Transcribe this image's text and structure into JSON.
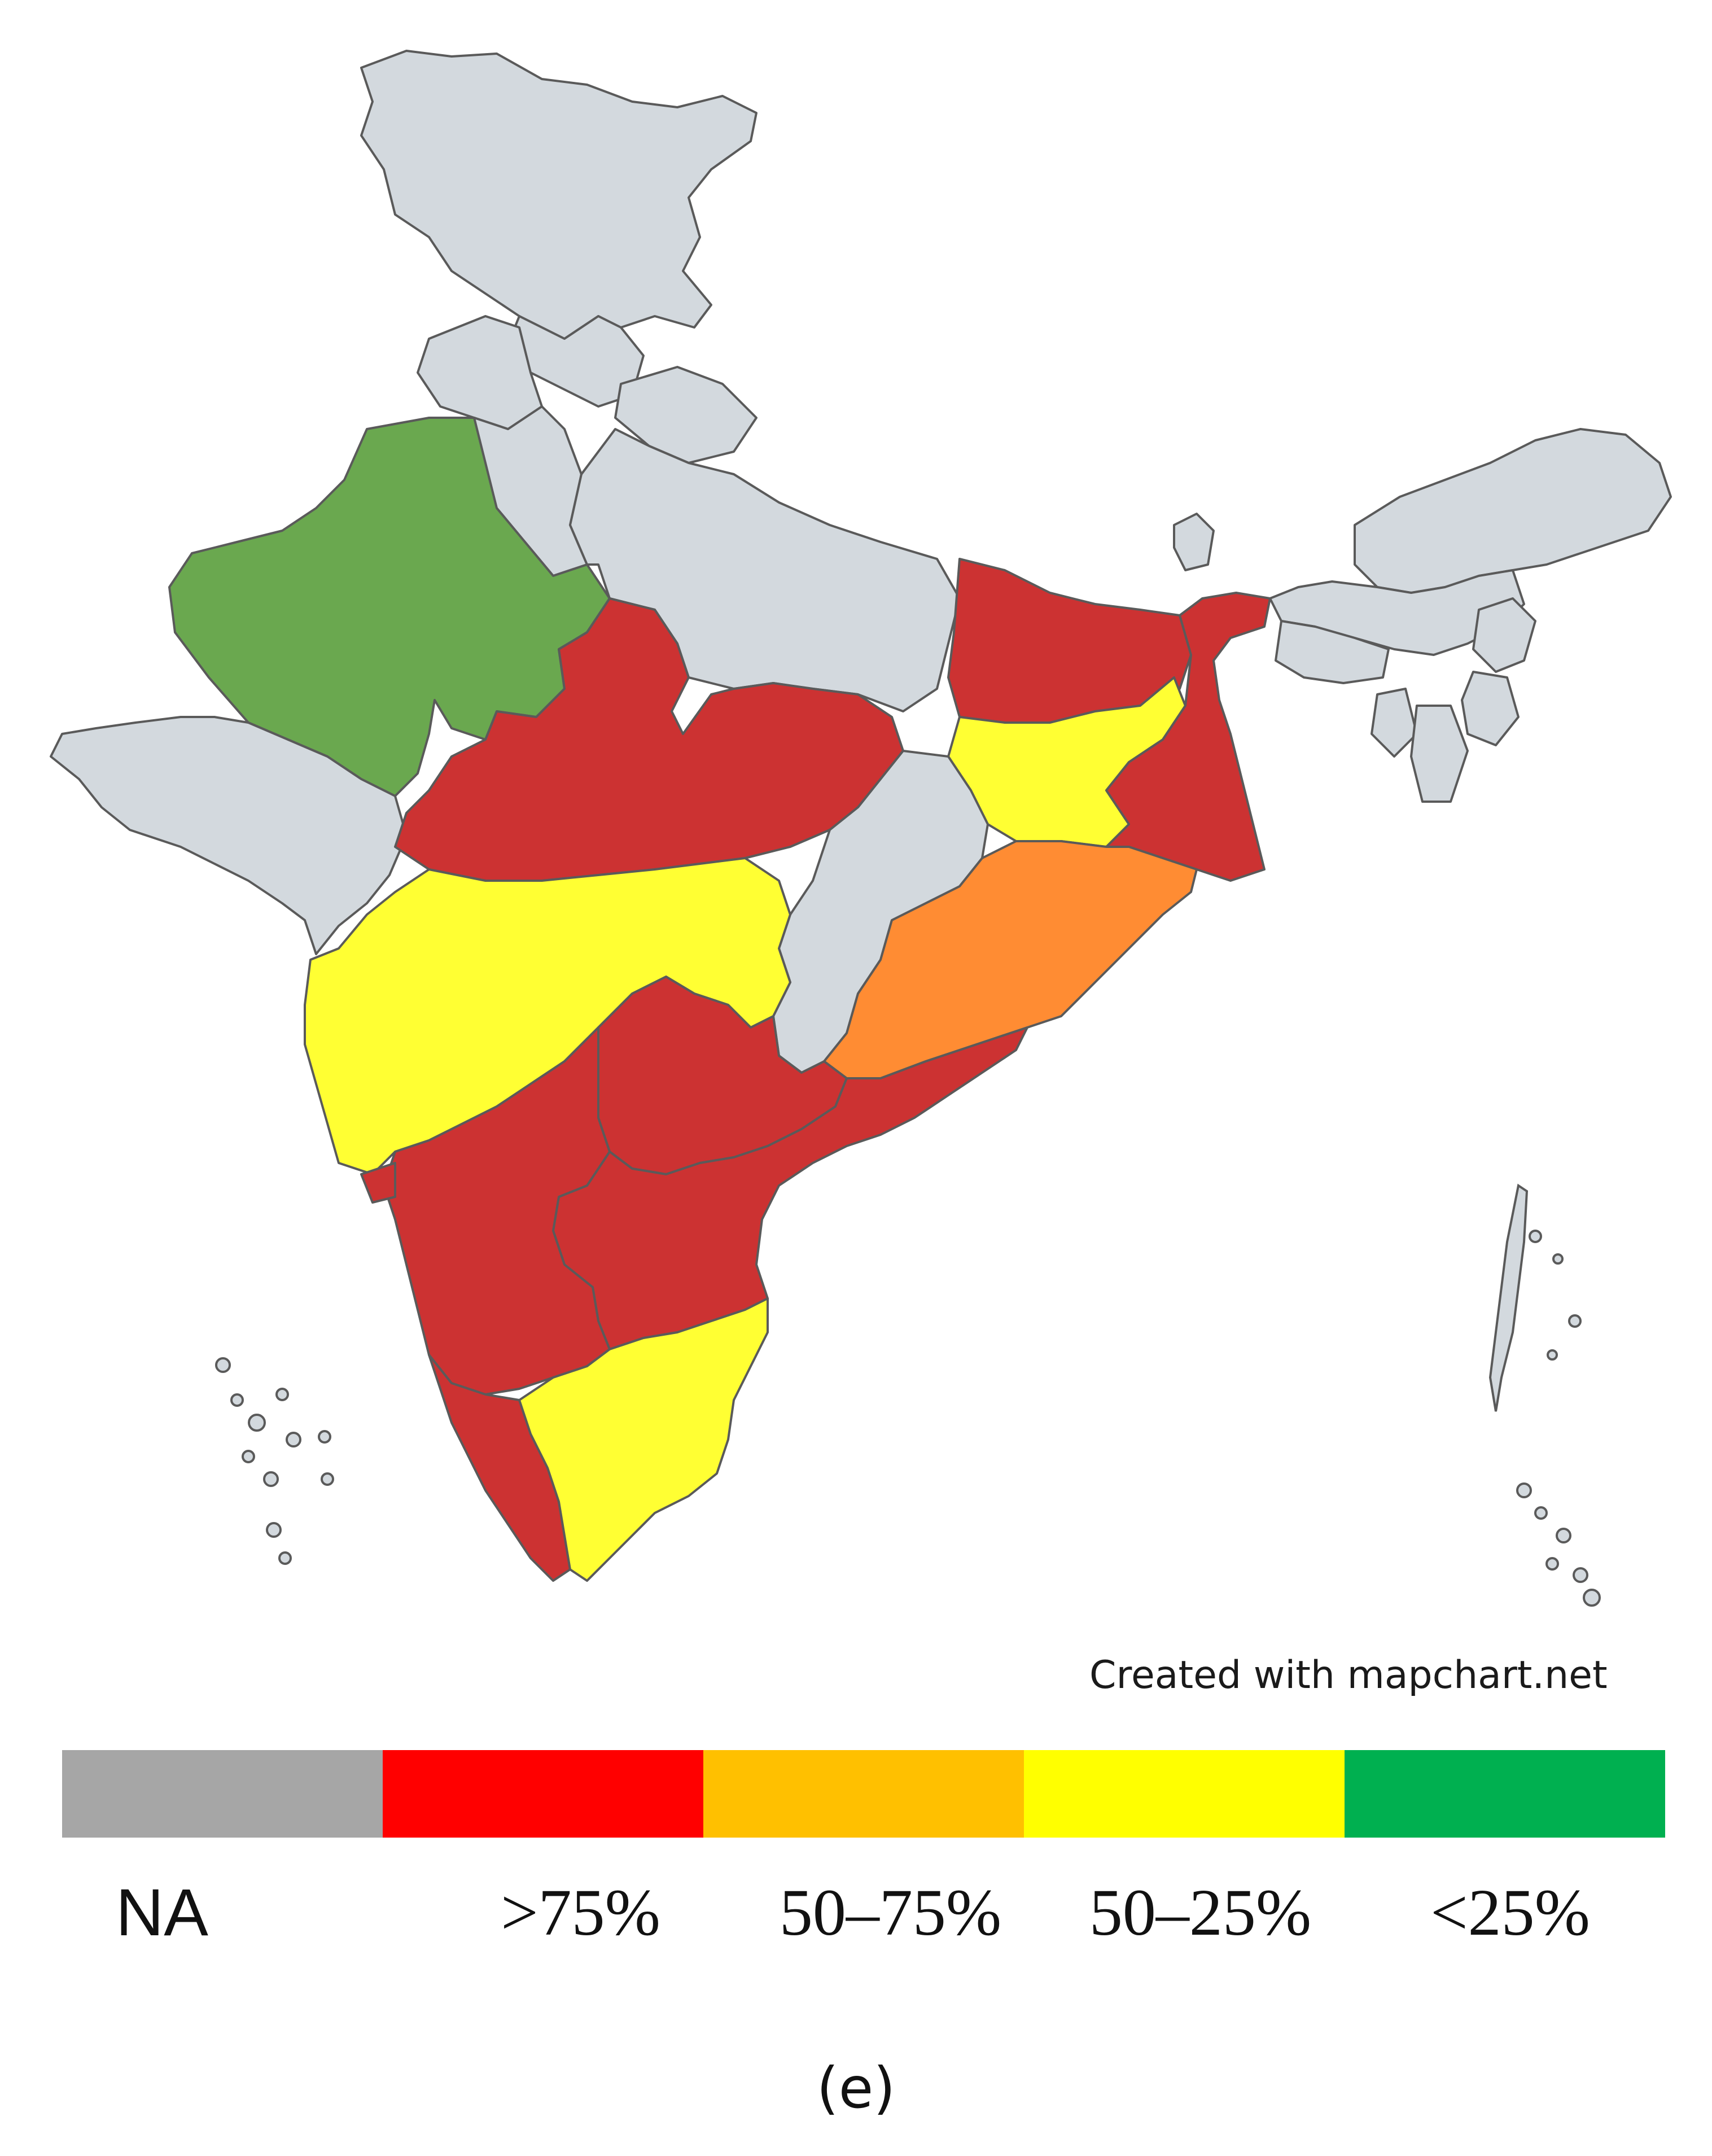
{
  "colors": {
    "na": "#d3d9de",
    "gt75": "#cc3232",
    "50to75": "#ff8c33",
    "25to50": "#ffff33",
    "lt25": "#6aa84f"
  },
  "legend": {
    "items": [
      {
        "label": "NA",
        "color": "#a6a6a6"
      },
      {
        "label": ">75%",
        "color": "#ff0000"
      },
      {
        "label": "50–75%",
        "color": "#ffc000"
      },
      {
        "label": "50–25%",
        "color": "#ffff00"
      },
      {
        "label": "<25%",
        "color": "#00b050"
      }
    ]
  },
  "credit": "Created with mapchart.net",
  "panel_label": "(e)"
}
